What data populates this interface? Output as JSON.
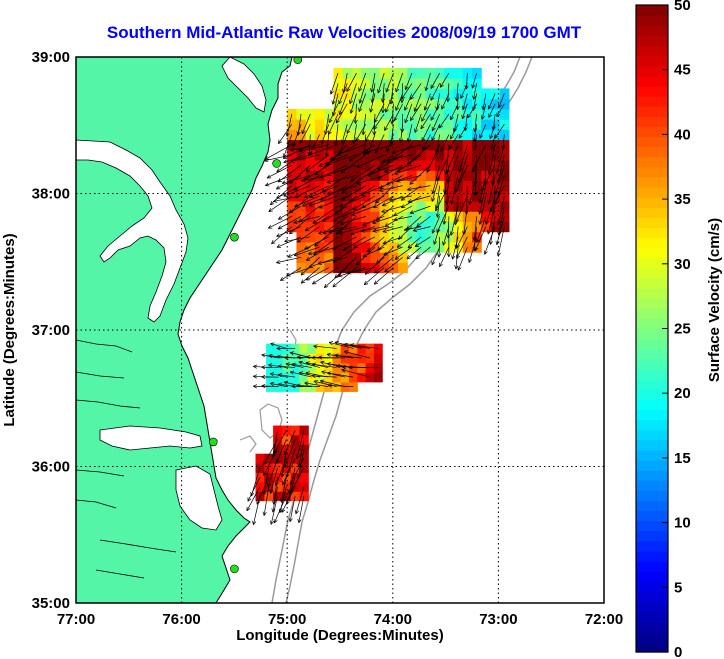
{
  "chart_data": {
    "type": "heatmap",
    "title": "Southern Mid-Atlantic Raw Velocities 2008/09/19 1700 GMT",
    "xlabel": "Longitude (Degrees:Minutes)",
    "ylabel": "Latitude (Degrees:Minutes)",
    "colorbar_label": "Surface Velocity (cm/s)",
    "x_ticks": [
      "77:00",
      "76:00",
      "75:00",
      "74:00",
      "73:00",
      "72:00"
    ],
    "y_ticks": [
      "39:00",
      "38:00",
      "37:00",
      "36:00",
      "35:00"
    ],
    "xlim": [
      -77,
      -72
    ],
    "ylim": [
      35,
      39
    ],
    "clim": [
      0,
      50
    ],
    "colorbar_ticks": [
      "0",
      "5",
      "10",
      "15",
      "20",
      "25",
      "30",
      "35",
      "40",
      "45",
      "50"
    ],
    "grid": true,
    "colormap": "jet",
    "land_color": "#55f5a8",
    "sea_color": "#ffffff",
    "title_color": "#0000ff",
    "stations": [
      {
        "lon": -74.9,
        "lat": 38.98
      },
      {
        "lon": -75.1,
        "lat": 38.22
      },
      {
        "lon": -75.5,
        "lat": 37.68
      },
      {
        "lon": -75.7,
        "lat": 36.18
      },
      {
        "lon": -75.5,
        "lat": 35.25
      }
    ]
  }
}
